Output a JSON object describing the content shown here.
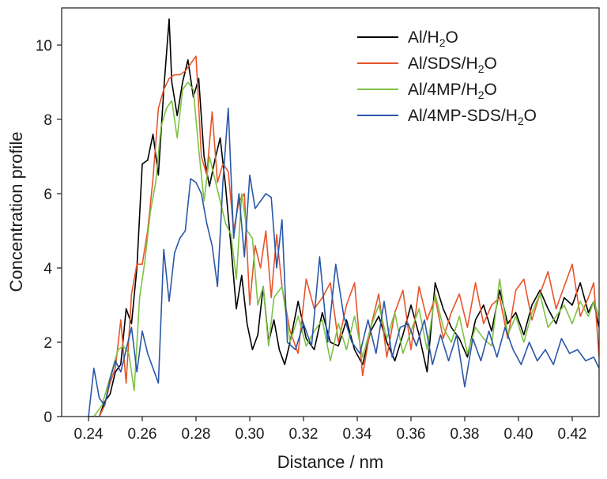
{
  "chart_data": {
    "type": "line",
    "xlabel": "Distance / nm",
    "ylabel": "Concentration profile",
    "xlim": [
      0.23,
      0.43
    ],
    "ylim": [
      0,
      11
    ],
    "x_ticks": [
      0.24,
      0.26,
      0.28,
      0.3,
      0.32,
      0.34,
      0.36,
      0.38,
      0.4,
      0.42
    ],
    "x_tick_labels": [
      "0.24",
      "0.26",
      "0.28",
      "0.30",
      "0.32",
      "0.34",
      "0.36",
      "0.38",
      "0.40",
      "0.42"
    ],
    "y_ticks": [
      0,
      2,
      4,
      6,
      8,
      10
    ],
    "y_tick_labels": [
      "0",
      "2",
      "4",
      "6",
      "8",
      "10"
    ],
    "grid": false,
    "legend_position": "top-right",
    "series": [
      {
        "name": "Al/H2O",
        "label_main": "Al/H",
        "label_sub": "2",
        "label_tail": "O",
        "color": "#000000",
        "x": [
          0.24,
          0.244,
          0.246,
          0.248,
          0.25,
          0.252,
          0.254,
          0.256,
          0.258,
          0.26,
          0.262,
          0.264,
          0.266,
          0.268,
          0.27,
          0.271,
          0.273,
          0.275,
          0.277,
          0.279,
          0.281,
          0.283,
          0.285,
          0.287,
          0.289,
          0.291,
          0.293,
          0.295,
          0.297,
          0.299,
          0.301,
          0.303,
          0.305,
          0.307,
          0.309,
          0.311,
          0.313,
          0.315,
          0.318,
          0.321,
          0.324,
          0.327,
          0.33,
          0.333,
          0.336,
          0.339,
          0.342,
          0.345,
          0.348,
          0.351,
          0.354,
          0.357,
          0.36,
          0.363,
          0.366,
          0.369,
          0.372,
          0.375,
          0.378,
          0.381,
          0.384,
          0.387,
          0.39,
          0.393,
          0.396,
          0.399,
          0.402,
          0.405,
          0.408,
          0.411,
          0.414,
          0.417,
          0.42,
          0.423,
          0.426,
          0.428,
          0.43
        ],
        "y": [
          0.0,
          0.0,
          0.4,
          0.6,
          1.2,
          1.4,
          2.9,
          2.5,
          4.0,
          6.8,
          6.9,
          7.6,
          6.5,
          8.8,
          10.7,
          9.0,
          8.1,
          9.0,
          9.6,
          8.6,
          9.1,
          7.0,
          6.2,
          6.9,
          7.5,
          6.2,
          4.6,
          2.9,
          3.8,
          2.5,
          1.8,
          2.2,
          3.5,
          2.0,
          2.6,
          1.8,
          1.4,
          2.0,
          3.1,
          2.1,
          1.8,
          2.8,
          2.0,
          1.9,
          2.6,
          1.8,
          1.4,
          2.3,
          2.7,
          2.0,
          1.5,
          2.2,
          3.0,
          2.2,
          1.2,
          3.6,
          2.9,
          2.4,
          2.1,
          1.6,
          2.6,
          3.0,
          2.3,
          3.4,
          2.5,
          2.8,
          2.2,
          3.0,
          3.4,
          2.9,
          2.5,
          3.2,
          3.0,
          3.6,
          2.8,
          3.1,
          2.4
        ]
      },
      {
        "name": "Al/SDS/H2O",
        "label_main": "Al/SDS/H",
        "label_sub": "2",
        "label_tail": "O",
        "color": "#e8542a",
        "x": [
          0.241,
          0.244,
          0.246,
          0.248,
          0.25,
          0.252,
          0.254,
          0.256,
          0.258,
          0.26,
          0.262,
          0.264,
          0.266,
          0.268,
          0.27,
          0.272,
          0.274,
          0.276,
          0.278,
          0.28,
          0.282,
          0.284,
          0.286,
          0.288,
          0.29,
          0.292,
          0.294,
          0.296,
          0.298,
          0.3,
          0.302,
          0.304,
          0.306,
          0.308,
          0.31,
          0.312,
          0.315,
          0.318,
          0.321,
          0.324,
          0.327,
          0.33,
          0.333,
          0.336,
          0.339,
          0.342,
          0.345,
          0.348,
          0.351,
          0.354,
          0.357,
          0.36,
          0.363,
          0.366,
          0.369,
          0.372,
          0.375,
          0.378,
          0.381,
          0.384,
          0.387,
          0.39,
          0.393,
          0.396,
          0.399,
          0.402,
          0.405,
          0.408,
          0.411,
          0.414,
          0.417,
          0.42,
          0.423,
          0.426,
          0.428,
          0.43
        ],
        "y": [
          0.0,
          0.0,
          0.3,
          0.9,
          1.3,
          2.6,
          0.9,
          3.3,
          4.1,
          4.1,
          5.0,
          6.4,
          8.3,
          8.8,
          9.1,
          9.2,
          9.2,
          9.3,
          9.5,
          9.7,
          7.0,
          6.5,
          8.2,
          6.3,
          6.8,
          6.6,
          5.0,
          5.8,
          6.0,
          3.0,
          4.6,
          4.0,
          5.0,
          3.2,
          4.9,
          3.5,
          2.3,
          1.7,
          3.7,
          2.9,
          3.2,
          3.6,
          2.0,
          3.0,
          3.6,
          1.1,
          2.4,
          3.3,
          1.6,
          2.8,
          3.4,
          1.8,
          3.5,
          2.6,
          3.2,
          2.1,
          2.8,
          3.3,
          2.4,
          3.6,
          2.5,
          3.0,
          3.2,
          2.1,
          3.4,
          3.7,
          2.6,
          3.3,
          3.9,
          2.9,
          3.5,
          4.1,
          2.7,
          3.2,
          3.6,
          1.6
        ]
      },
      {
        "name": "Al/4MP/H2O",
        "label_main": "Al/4MP/H",
        "label_sub": "2",
        "label_tail": "O",
        "color": "#7dc243",
        "x": [
          0.242,
          0.245,
          0.247,
          0.249,
          0.251,
          0.253,
          0.255,
          0.257,
          0.259,
          0.261,
          0.263,
          0.265,
          0.267,
          0.269,
          0.271,
          0.273,
          0.275,
          0.277,
          0.279,
          0.281,
          0.283,
          0.285,
          0.287,
          0.289,
          0.291,
          0.293,
          0.295,
          0.297,
          0.299,
          0.301,
          0.303,
          0.305,
          0.307,
          0.309,
          0.312,
          0.315,
          0.318,
          0.321,
          0.324,
          0.327,
          0.33,
          0.333,
          0.336,
          0.339,
          0.342,
          0.345,
          0.348,
          0.351,
          0.354,
          0.357,
          0.36,
          0.363,
          0.366,
          0.369,
          0.372,
          0.375,
          0.378,
          0.381,
          0.384,
          0.387,
          0.39,
          0.393,
          0.396,
          0.399,
          0.402,
          0.405,
          0.408,
          0.411,
          0.414,
          0.417,
          0.42,
          0.423,
          0.426,
          0.428,
          0.43
        ],
        "y": [
          0.0,
          0.3,
          0.8,
          1.3,
          1.8,
          1.9,
          1.7,
          0.7,
          3.2,
          4.2,
          5.5,
          6.3,
          7.8,
          8.3,
          8.5,
          7.5,
          8.8,
          9.0,
          8.8,
          7.2,
          5.8,
          7.0,
          6.4,
          5.8,
          5.2,
          4.9,
          3.7,
          6.0,
          5.0,
          4.8,
          3.0,
          3.5,
          1.9,
          3.2,
          3.5,
          2.0,
          2.7,
          1.9,
          2.3,
          2.6,
          1.5,
          2.5,
          1.8,
          2.7,
          1.6,
          2.4,
          3.0,
          2.1,
          2.8,
          1.7,
          2.3,
          2.9,
          1.8,
          3.3,
          2.4,
          2.0,
          2.7,
          1.7,
          2.4,
          2.1,
          1.9,
          3.7,
          2.2,
          2.7,
          2.0,
          2.8,
          3.3,
          2.4,
          2.7,
          3.0,
          2.5,
          3.1,
          2.7,
          3.1,
          2.7
        ]
      },
      {
        "name": "Al/4MP-SDS/H2O",
        "label_main": "Al/4MP-SDS/H",
        "label_sub": "2",
        "label_tail": "O",
        "color": "#2a57a8",
        "x": [
          0.24,
          0.242,
          0.244,
          0.246,
          0.248,
          0.25,
          0.252,
          0.254,
          0.256,
          0.258,
          0.26,
          0.262,
          0.264,
          0.266,
          0.268,
          0.27,
          0.272,
          0.274,
          0.276,
          0.278,
          0.28,
          0.282,
          0.284,
          0.286,
          0.288,
          0.29,
          0.292,
          0.294,
          0.296,
          0.298,
          0.3,
          0.302,
          0.304,
          0.306,
          0.308,
          0.31,
          0.312,
          0.314,
          0.317,
          0.32,
          0.323,
          0.326,
          0.329,
          0.332,
          0.335,
          0.338,
          0.341,
          0.344,
          0.347,
          0.35,
          0.353,
          0.356,
          0.359,
          0.362,
          0.365,
          0.368,
          0.371,
          0.374,
          0.377,
          0.38,
          0.383,
          0.386,
          0.389,
          0.392,
          0.395,
          0.398,
          0.401,
          0.404,
          0.407,
          0.41,
          0.413,
          0.416,
          0.419,
          0.422,
          0.425,
          0.428,
          0.43
        ],
        "y": [
          0.0,
          1.3,
          0.5,
          0.3,
          1.0,
          1.5,
          1.2,
          1.8,
          2.4,
          1.2,
          2.3,
          1.7,
          1.3,
          0.9,
          4.5,
          3.1,
          4.4,
          4.8,
          5.0,
          6.4,
          6.3,
          6.0,
          5.2,
          4.6,
          3.5,
          6.3,
          8.3,
          4.8,
          6.0,
          4.3,
          6.5,
          5.6,
          5.8,
          6.0,
          5.9,
          4.0,
          5.3,
          2.0,
          1.8,
          2.5,
          1.9,
          4.3,
          2.0,
          4.1,
          2.7,
          2.0,
          1.7,
          2.6,
          1.7,
          3.1,
          1.6,
          2.4,
          2.5,
          1.9,
          2.6,
          1.4,
          2.2,
          1.5,
          2.2,
          0.8,
          2.1,
          1.5,
          2.3,
          1.6,
          2.4,
          1.8,
          1.4,
          2.0,
          1.5,
          1.8,
          1.4,
          2.1,
          1.7,
          1.8,
          1.5,
          1.6,
          1.3
        ]
      }
    ]
  }
}
